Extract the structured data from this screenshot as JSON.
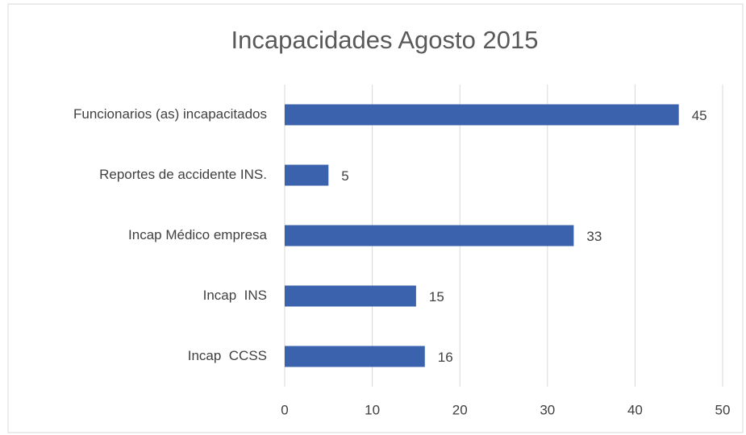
{
  "chart_data": {
    "type": "bar",
    "orientation": "horizontal",
    "title": "Incapacidades Agosto 2015",
    "categories": [
      "Funcionarios (as) incapacitados",
      "Reportes de accidente INS.",
      "Incap Médico empresa",
      "Incap  INS",
      "Incap  CCSS"
    ],
    "values": [
      45,
      5,
      33,
      15,
      16
    ],
    "color": "#3a62ad",
    "xlim": [
      0,
      50
    ],
    "xticks": [
      0,
      10,
      20,
      30,
      40,
      50
    ],
    "grid": true
  }
}
